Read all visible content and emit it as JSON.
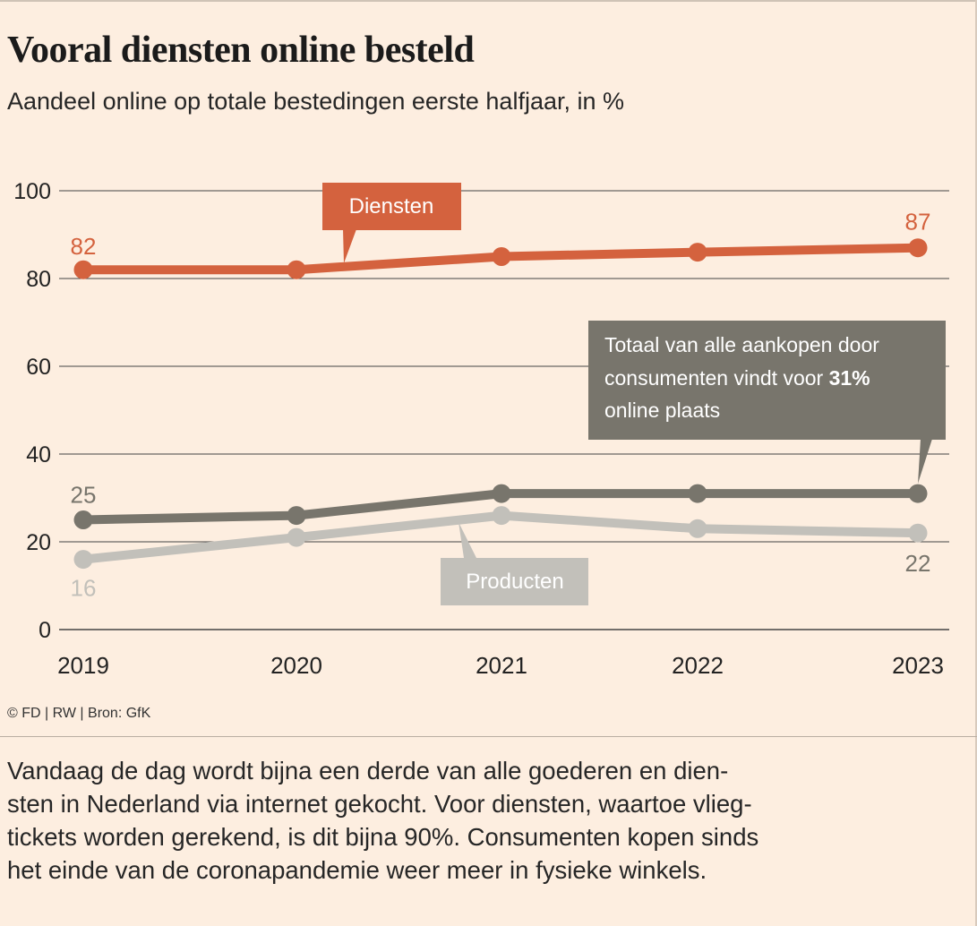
{
  "title": "Vooral diensten online besteld",
  "subtitle": "Aandeel online op totale bestedingen eerste halfjaar, in %",
  "source": "© FD | RW | Bron: GfK",
  "body_text": "Vandaag de dag wordt bijna een derde van alle goederen en dien-\nsten in Nederland via internet gekocht. Voor diensten, waartoe vlieg-\ntickets worden gerekend, is dit bijna 90%. Consumenten kopen sinds\nhet einde van de coronapandemie weer meer in fysieke winkels.",
  "annotation": {
    "line1": "Totaal van alle aankopen door",
    "line2_pre": "consumenten vindt voor ",
    "line2_bold": "31%",
    "line3": "online plaats"
  },
  "colors": {
    "diensten": "#d4623e",
    "totaal": "#78756c",
    "producten": "#c2c0ba",
    "grid": "#444444",
    "background": "#fdeee0"
  },
  "chart_data": {
    "type": "line",
    "categories": [
      "2019",
      "2020",
      "2021",
      "2022",
      "2023"
    ],
    "ylim": [
      0,
      100
    ],
    "yticks": [
      "0",
      "20",
      "40",
      "60",
      "80",
      "100"
    ],
    "grid": true,
    "series": [
      {
        "name": "Diensten",
        "values": [
          82,
          82,
          85,
          86,
          87
        ],
        "labels": [
          "82",
          "",
          "",
          "",
          "87"
        ]
      },
      {
        "name": "",
        "values": [
          25,
          26,
          31,
          31,
          31
        ],
        "labels": [
          "25",
          "",
          "",
          "",
          ""
        ]
      },
      {
        "name": "Producten",
        "values": [
          16,
          21,
          26,
          23,
          22
        ],
        "labels": [
          "16",
          "",
          "",
          "",
          "22"
        ]
      }
    ]
  }
}
